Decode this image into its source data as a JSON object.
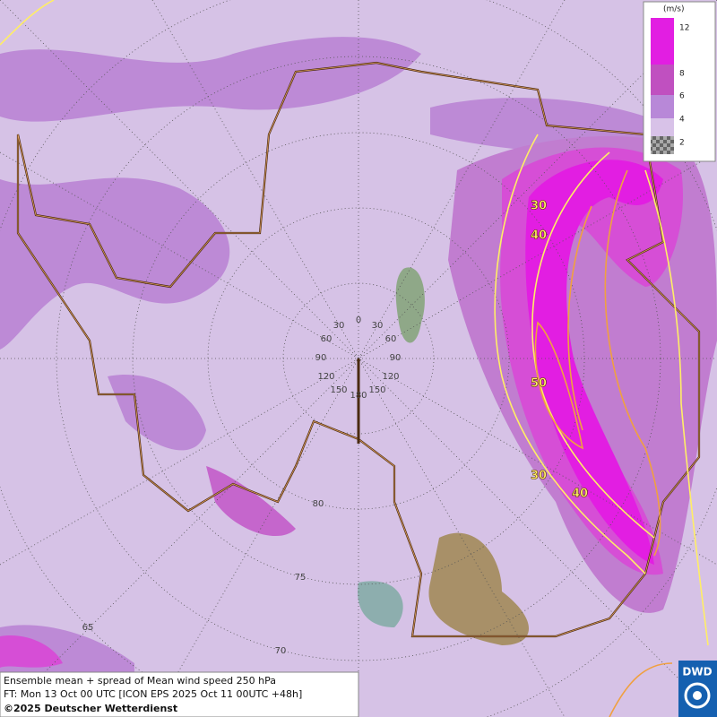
{
  "legend": {
    "unit": "(m/s)",
    "labels": [
      "12",
      "8",
      "6",
      "4",
      "2"
    ]
  },
  "contour_labels": [
    "30",
    "40",
    "50",
    "30",
    "40"
  ],
  "longitude_labels": [
    "0",
    "30",
    "30",
    "60",
    "60",
    "90",
    "90",
    "120",
    "120",
    "150",
    "150",
    "180"
  ],
  "latitude_labels": [
    "80",
    "75",
    "70",
    "65"
  ],
  "caption": {
    "line1": "Ensemble mean + spread of Mean wind speed 250 hPa",
    "line2": "FT: Mon 13 Oct 00 UTC [ICON EPS 2025 Oct 11 00UTC +48h]",
    "line3": "©2025 Deutscher Wetterdienst"
  },
  "logo": "DWD"
}
